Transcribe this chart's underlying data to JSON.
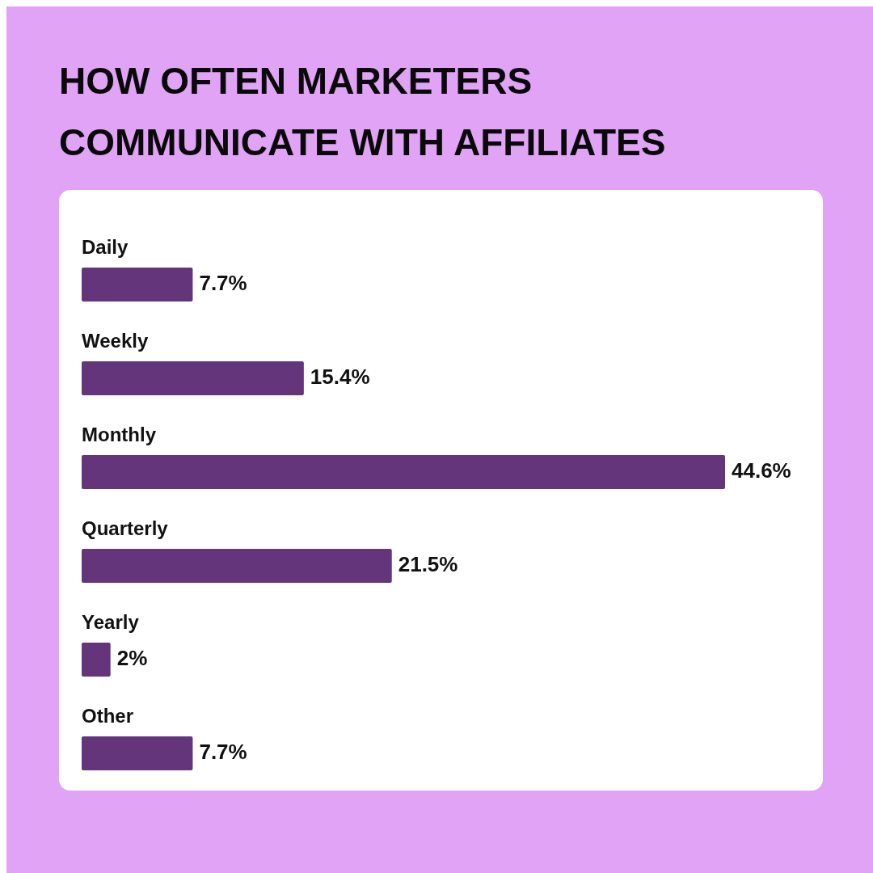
{
  "chart_data": {
    "type": "bar",
    "orientation": "horizontal",
    "title": "HOW OFTEN MARKETERS COMMUNICATE WITH AFFILIATES",
    "categories": [
      "Daily",
      "Weekly",
      "Monthly",
      "Quarterly",
      "Yearly",
      "Other"
    ],
    "values": [
      7.7,
      15.4,
      44.6,
      21.5,
      2,
      7.7
    ],
    "value_labels": [
      "7.7%",
      "15.4%",
      "44.6%",
      "21.5%",
      "2%",
      "7.7%"
    ],
    "color": "#65357b"
  }
}
